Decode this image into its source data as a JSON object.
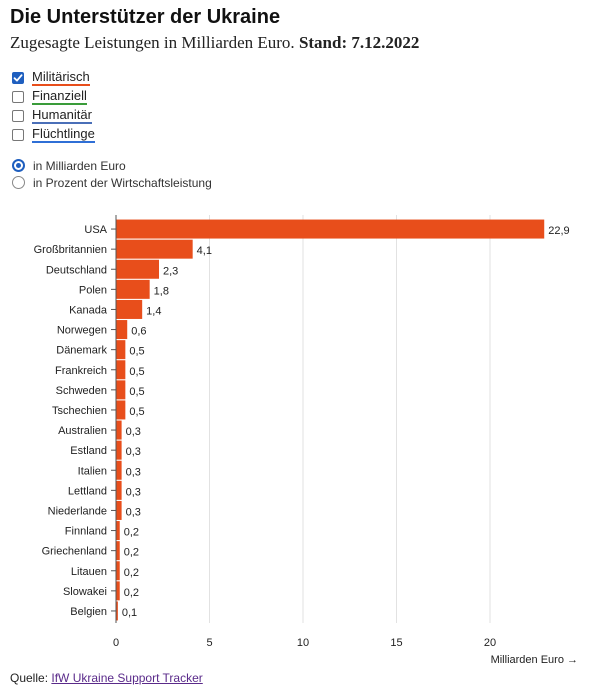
{
  "header": {
    "title": "Die Unterstützer der Ukraine",
    "subtitle_text": "Zugesagte Leistungen in Milliarden Euro.",
    "subtitle_date": "Stand: 7.12.2022"
  },
  "filters": [
    {
      "label": "Militärisch",
      "checked": true,
      "color": "#e84e1b"
    },
    {
      "label": "Finanziell",
      "checked": false,
      "color": "#3a9c3a"
    },
    {
      "label": "Humanitär",
      "checked": false,
      "color": "#4a6fb8"
    },
    {
      "label": "Flüchtlinge",
      "checked": false,
      "color": "#2f6fd6"
    }
  ],
  "units": [
    {
      "label": "in Milliarden Euro",
      "selected": true
    },
    {
      "label": "in Prozent der Wirtschaftsleistung",
      "selected": false
    }
  ],
  "chart_data": {
    "type": "bar",
    "orientation": "horizontal",
    "categories": [
      "USA",
      "Großbritannien",
      "Deutschland",
      "Polen",
      "Kanada",
      "Norwegen",
      "Dänemark",
      "Frankreich",
      "Schweden",
      "Tschechien",
      "Australien",
      "Estland",
      "Italien",
      "Lettland",
      "Niederlande",
      "Finnland",
      "Griechenland",
      "Litauen",
      "Slowakei",
      "Belgien"
    ],
    "values": [
      22.9,
      4.1,
      2.3,
      1.8,
      1.4,
      0.6,
      0.5,
      0.5,
      0.5,
      0.5,
      0.3,
      0.3,
      0.3,
      0.3,
      0.3,
      0.2,
      0.2,
      0.2,
      0.2,
      0.1
    ],
    "value_labels": [
      "22,9",
      "4,1",
      "2,3",
      "1,8",
      "1,4",
      "0,6",
      "0,5",
      "0,5",
      "0,5",
      "0,5",
      "0,3",
      "0,3",
      "0,3",
      "0,3",
      "0,3",
      "0,2",
      "0,2",
      "0,2",
      "0,2",
      "0,1"
    ],
    "xlabel": "Milliarden Euro →",
    "xticks": [
      0,
      5,
      10,
      15,
      20
    ],
    "xlim": [
      0,
      23
    ],
    "grid": true,
    "bar_color": "#e84e1b"
  },
  "source": {
    "label": "Quelle:",
    "link_text": "IfW Ukraine Support Tracker"
  }
}
